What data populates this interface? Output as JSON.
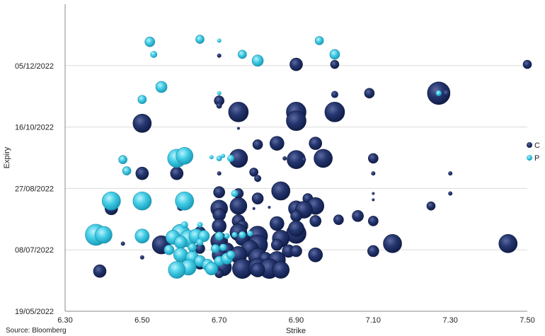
{
  "chart_data": {
    "type": "bubble",
    "xlabel": "Strike",
    "ylabel": "Expiry",
    "source": "Source: Bloomberg",
    "xlim": [
      6.3,
      7.5
    ],
    "x_ticks": [
      "6.30",
      "6.50",
      "6.70",
      "6.90",
      "7.10",
      "7.30",
      "7.50"
    ],
    "y_range_days": [
      0,
      245
    ],
    "y_ticks": [
      {
        "label": "19/05/2022",
        "day": 0
      },
      {
        "label": "08/07/2022",
        "day": 49
      },
      {
        "label": "27/08/2022",
        "day": 98
      },
      {
        "label": "16/10/2022",
        "day": 147
      },
      {
        "label": "05/12/2022",
        "day": 196
      }
    ],
    "grid": "horizontal",
    "legend_position": "right",
    "colors": {
      "C": "#1b2a5e",
      "P": "#3cc6e3"
    },
    "series": [
      {
        "name": "C",
        "points": [
          [
            7.5,
            197,
            6
          ],
          [
            6.9,
            197,
            9
          ],
          [
            7.0,
            197,
            6
          ],
          [
            6.7,
            204,
            3
          ],
          [
            7.0,
            204,
            3
          ],
          [
            7.09,
            174,
            7
          ],
          [
            7.27,
            174,
            16
          ],
          [
            7.29,
            174,
            5
          ],
          [
            7.0,
            173,
            5
          ],
          [
            6.7,
            168,
            7
          ],
          [
            6.7,
            164,
            4
          ],
          [
            6.75,
            159,
            14
          ],
          [
            6.9,
            159,
            14
          ],
          [
            7.0,
            159,
            14
          ],
          [
            6.9,
            152,
            14
          ],
          [
            6.5,
            150,
            13
          ],
          [
            6.75,
            146,
            2
          ],
          [
            6.8,
            133,
            7
          ],
          [
            6.85,
            134,
            10
          ],
          [
            6.95,
            134,
            9
          ],
          [
            7.1,
            122,
            7
          ],
          [
            6.75,
            122,
            13
          ],
          [
            6.9,
            121,
            13
          ],
          [
            6.97,
            122,
            13
          ],
          [
            6.92,
            121,
            3
          ],
          [
            6.87,
            122,
            3
          ],
          [
            6.5,
            110,
            9
          ],
          [
            6.59,
            110,
            9
          ],
          [
            6.7,
            110,
            3
          ],
          [
            6.79,
            111,
            6
          ],
          [
            6.8,
            106,
            5
          ],
          [
            7.1,
            110,
            3
          ],
          [
            7.3,
            110,
            3
          ],
          [
            6.7,
            95,
            8
          ],
          [
            6.75,
            94,
            7
          ],
          [
            6.86,
            96,
            13
          ],
          [
            6.8,
            90,
            8
          ],
          [
            6.93,
            90,
            7
          ],
          [
            7.1,
            94,
            2
          ],
          [
            7.1,
            89,
            2
          ],
          [
            7.3,
            94,
            3
          ],
          [
            6.75,
            84,
            12
          ],
          [
            6.7,
            82,
            12
          ],
          [
            6.95,
            84,
            12
          ],
          [
            6.9,
            82,
            11
          ],
          [
            6.92,
            81,
            12
          ],
          [
            6.79,
            82,
            2
          ],
          [
            6.83,
            83,
            2
          ],
          [
            6.42,
            82,
            9
          ],
          [
            6.6,
            83,
            5
          ],
          [
            7.25,
            84,
            6
          ],
          [
            6.7,
            77,
            9
          ],
          [
            6.9,
            76,
            8
          ],
          [
            7.06,
            76,
            8
          ],
          [
            6.75,
            72,
            9
          ],
          [
            6.95,
            72,
            8
          ],
          [
            7.01,
            73,
            7
          ],
          [
            7.1,
            72,
            7
          ],
          [
            6.7,
            68,
            10
          ],
          [
            6.76,
            68,
            8
          ],
          [
            6.85,
            70,
            10
          ],
          [
            6.9,
            62,
            14
          ],
          [
            6.75,
            63,
            12
          ],
          [
            6.8,
            60,
            14
          ],
          [
            6.86,
            58,
            12
          ],
          [
            6.65,
            63,
            8
          ],
          [
            6.76,
            58,
            10
          ],
          [
            6.9,
            66,
            11
          ],
          [
            6.6,
            62,
            13
          ],
          [
            6.55,
            53,
            13
          ],
          [
            6.5,
            58,
            3
          ],
          [
            6.7,
            56,
            12
          ],
          [
            6.8,
            53,
            14
          ],
          [
            6.85,
            53,
            8
          ],
          [
            6.72,
            49,
            10
          ],
          [
            6.78,
            50,
            12
          ],
          [
            6.88,
            48,
            9
          ],
          [
            6.7,
            45,
            10
          ],
          [
            6.75,
            45,
            12
          ],
          [
            6.8,
            43,
            13
          ],
          [
            6.82,
            42,
            9
          ],
          [
            6.85,
            41,
            12
          ],
          [
            6.62,
            40,
            9
          ],
          [
            6.65,
            38,
            8
          ],
          [
            6.71,
            35,
            12
          ],
          [
            6.76,
            34,
            14
          ],
          [
            6.8,
            35,
            13
          ],
          [
            6.83,
            34,
            14
          ],
          [
            6.86,
            33,
            12
          ],
          [
            6.9,
            48,
            8
          ],
          [
            6.95,
            45,
            10
          ],
          [
            7.1,
            48,
            8
          ],
          [
            7.15,
            54,
            13
          ],
          [
            7.45,
            54,
            13
          ],
          [
            6.39,
            32,
            9
          ],
          [
            6.5,
            43,
            3
          ],
          [
            6.45,
            54,
            3
          ],
          [
            6.7,
            30,
            6
          ],
          [
            6.8,
            33,
            10
          ],
          [
            6.65,
            50,
            7
          ]
        ]
      },
      {
        "name": "P",
        "points": [
          [
            6.52,
            215,
            7
          ],
          [
            6.53,
            205,
            5
          ],
          [
            6.65,
            217,
            6
          ],
          [
            6.7,
            216,
            3
          ],
          [
            6.76,
            205,
            6
          ],
          [
            6.8,
            200,
            8
          ],
          [
            6.96,
            216,
            6
          ],
          [
            7.0,
            205,
            7
          ],
          [
            6.55,
            179,
            8
          ],
          [
            6.7,
            174,
            3
          ],
          [
            6.5,
            169,
            6
          ],
          [
            7.27,
            174,
            4
          ],
          [
            6.59,
            122,
            13
          ],
          [
            6.61,
            124,
            12
          ],
          [
            6.71,
            124,
            3
          ],
          [
            6.73,
            122,
            5
          ],
          [
            6.68,
            123,
            3
          ],
          [
            6.7,
            122,
            4
          ],
          [
            6.45,
            121,
            6
          ],
          [
            6.46,
            112,
            6
          ],
          [
            6.42,
            88,
            13
          ],
          [
            6.5,
            88,
            13
          ],
          [
            6.61,
            88,
            13
          ],
          [
            6.74,
            94,
            5
          ],
          [
            6.38,
            61,
            15
          ],
          [
            6.4,
            61,
            12
          ],
          [
            6.5,
            60,
            10
          ],
          [
            6.6,
            62,
            13
          ],
          [
            6.62,
            58,
            12
          ],
          [
            6.64,
            60,
            10
          ],
          [
            6.58,
            59,
            10
          ],
          [
            6.66,
            60,
            8
          ],
          [
            6.7,
            60,
            6
          ],
          [
            6.72,
            60,
            4
          ],
          [
            6.74,
            61,
            4
          ],
          [
            6.76,
            61,
            5
          ],
          [
            6.78,
            62,
            4
          ],
          [
            6.61,
            69,
            5
          ],
          [
            6.65,
            69,
            4
          ],
          [
            6.6,
            55,
            9
          ],
          [
            6.57,
            49,
            7
          ],
          [
            6.6,
            45,
            10
          ],
          [
            6.63,
            43,
            9
          ],
          [
            6.65,
            40,
            8
          ],
          [
            6.67,
            37,
            8
          ],
          [
            6.7,
            40,
            7
          ],
          [
            6.62,
            35,
            11
          ],
          [
            6.68,
            34,
            9
          ],
          [
            6.72,
            42,
            8
          ],
          [
            6.59,
            33,
            12
          ],
          [
            6.69,
            50,
            6
          ],
          [
            6.63,
            51,
            6
          ],
          [
            6.71,
            51,
            5
          ],
          [
            6.73,
            45,
            6
          ],
          [
            6.65,
            55,
            5
          ]
        ]
      }
    ]
  }
}
